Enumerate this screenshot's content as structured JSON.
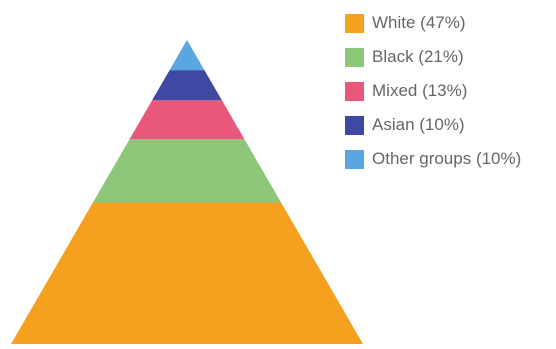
{
  "chart_data": {
    "type": "pyramid",
    "title": "",
    "series": [
      {
        "label": "White (47%)",
        "value": 47,
        "color": "#F5A01E"
      },
      {
        "label": "Black (21%)",
        "value": 21,
        "color": "#8DC87A"
      },
      {
        "label": "Mixed (13%)",
        "value": 13,
        "color": "#E9587A"
      },
      {
        "label": "Asian (10%)",
        "value": 10,
        "color": "#3F48A3"
      },
      {
        "label": "Other groups (10%)",
        "value": 10,
        "color": "#5AA6E0"
      }
    ],
    "legend_position": "right"
  }
}
